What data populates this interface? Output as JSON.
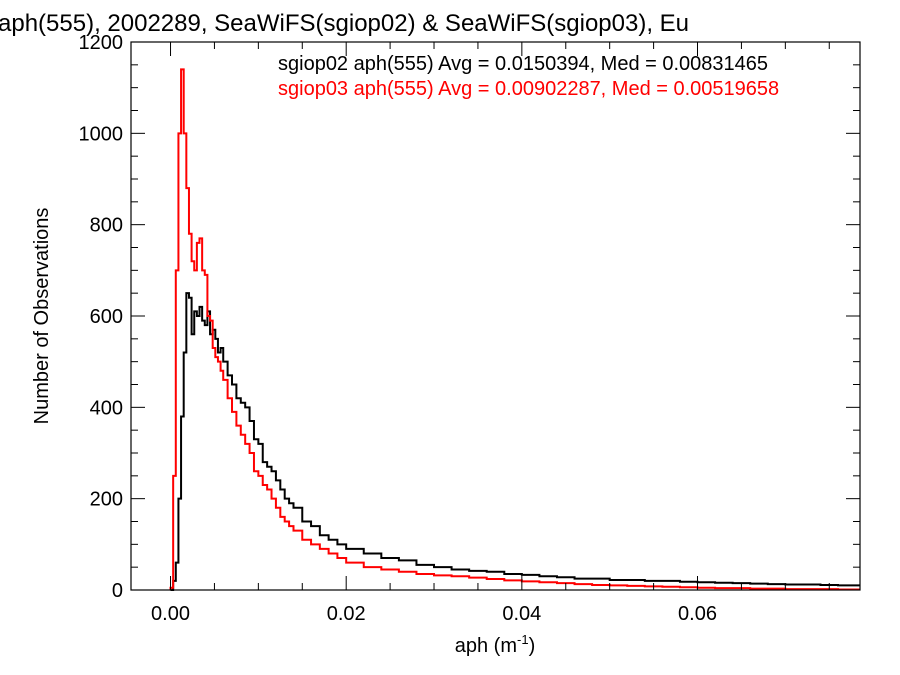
{
  "chart_data": {
    "type": "line",
    "title": "aph(555), 2002289, SeaWiFS(sgiop02) & SeaWiFS(sgiop03), Eu",
    "xlabel": "aph (m",
    "xlabel_sup": "-1",
    "xlabel_close": ")",
    "ylabel": "Number of Observations",
    "xlim": [
      -0.0045,
      0.0785
    ],
    "ylim": [
      0,
      1200
    ],
    "xticks": [
      0.0,
      0.02,
      0.04,
      0.06
    ],
    "xtick_labels": [
      "0.00",
      "0.02",
      "0.04",
      "0.06"
    ],
    "yticks": [
      0,
      200,
      400,
      600,
      800,
      1000,
      1200
    ],
    "ytick_labels": [
      "0",
      "200",
      "400",
      "600",
      "800",
      "1000",
      "1200"
    ],
    "grid": false,
    "legend_position": "top-right",
    "annotations": [
      {
        "text": "sgiop02 aph(555) Avg = 0.0150394, Med = 0.00831465",
        "color": "#000000"
      },
      {
        "text": "sgiop03 aph(555) Avg = 0.00902287, Med = 0.00519658",
        "color": "#ff0000"
      }
    ],
    "series": [
      {
        "color": "#000000",
        "x": [
          0.0,
          0.0003,
          0.0006,
          0.0009,
          0.0012,
          0.0015,
          0.0018,
          0.0021,
          0.0024,
          0.0027,
          0.003,
          0.0033,
          0.0036,
          0.0039,
          0.0042,
          0.0045,
          0.0048,
          0.0051,
          0.0054,
          0.0057,
          0.006,
          0.0065,
          0.007,
          0.0075,
          0.008,
          0.0085,
          0.009,
          0.0095,
          0.01,
          0.0105,
          0.011,
          0.0115,
          0.012,
          0.0125,
          0.013,
          0.0135,
          0.014,
          0.015,
          0.016,
          0.017,
          0.018,
          0.019,
          0.02,
          0.022,
          0.024,
          0.026,
          0.028,
          0.03,
          0.032,
          0.034,
          0.036,
          0.038,
          0.04,
          0.042,
          0.044,
          0.046,
          0.048,
          0.05,
          0.052,
          0.054,
          0.056,
          0.058,
          0.06,
          0.062,
          0.064,
          0.066,
          0.068,
          0.07,
          0.072,
          0.074,
          0.076,
          0.078
        ],
        "values": [
          0,
          20,
          60,
          200,
          380,
          520,
          650,
          640,
          560,
          610,
          600,
          620,
          590,
          580,
          610,
          560,
          570,
          550,
          520,
          530,
          500,
          470,
          450,
          420,
          410,
          400,
          370,
          330,
          320,
          280,
          270,
          260,
          240,
          220,
          200,
          190,
          180,
          150,
          140,
          120,
          110,
          100,
          90,
          80,
          70,
          65,
          55,
          50,
          45,
          42,
          40,
          35,
          33,
          30,
          28,
          25,
          25,
          22,
          22,
          20,
          20,
          18,
          17,
          16,
          15,
          14,
          13,
          12,
          12,
          11,
          10,
          10
        ]
      },
      {
        "color": "#ff0000",
        "x": [
          0.0,
          0.0003,
          0.0006,
          0.0009,
          0.0012,
          0.0015,
          0.0018,
          0.0021,
          0.0024,
          0.0027,
          0.003,
          0.0033,
          0.0036,
          0.0039,
          0.0042,
          0.0045,
          0.0048,
          0.0051,
          0.0054,
          0.0057,
          0.006,
          0.0065,
          0.007,
          0.0075,
          0.008,
          0.0085,
          0.009,
          0.0095,
          0.01,
          0.0105,
          0.011,
          0.0115,
          0.012,
          0.0125,
          0.013,
          0.0135,
          0.014,
          0.015,
          0.016,
          0.017,
          0.018,
          0.019,
          0.02,
          0.022,
          0.024,
          0.026,
          0.028,
          0.03,
          0.032,
          0.034,
          0.036,
          0.038,
          0.04,
          0.042,
          0.044,
          0.046,
          0.048,
          0.05,
          0.052,
          0.054,
          0.056,
          0.058,
          0.06,
          0.062,
          0.064,
          0.066,
          0.068,
          0.07,
          0.072,
          0.074,
          0.076,
          0.078
        ],
        "values": [
          5,
          250,
          700,
          1000,
          1140,
          1000,
          880,
          780,
          720,
          700,
          760,
          770,
          700,
          690,
          600,
          590,
          530,
          510,
          500,
          480,
          460,
          420,
          390,
          360,
          340,
          320,
          300,
          260,
          250,
          230,
          220,
          200,
          180,
          160,
          150,
          140,
          130,
          110,
          100,
          90,
          80,
          70,
          60,
          50,
          45,
          40,
          35,
          32,
          30,
          27,
          24,
          21,
          19,
          17,
          15,
          13,
          11,
          10,
          9,
          8,
          7,
          6,
          5,
          4,
          4,
          3,
          3,
          2,
          2,
          2,
          1,
          1
        ]
      }
    ]
  }
}
